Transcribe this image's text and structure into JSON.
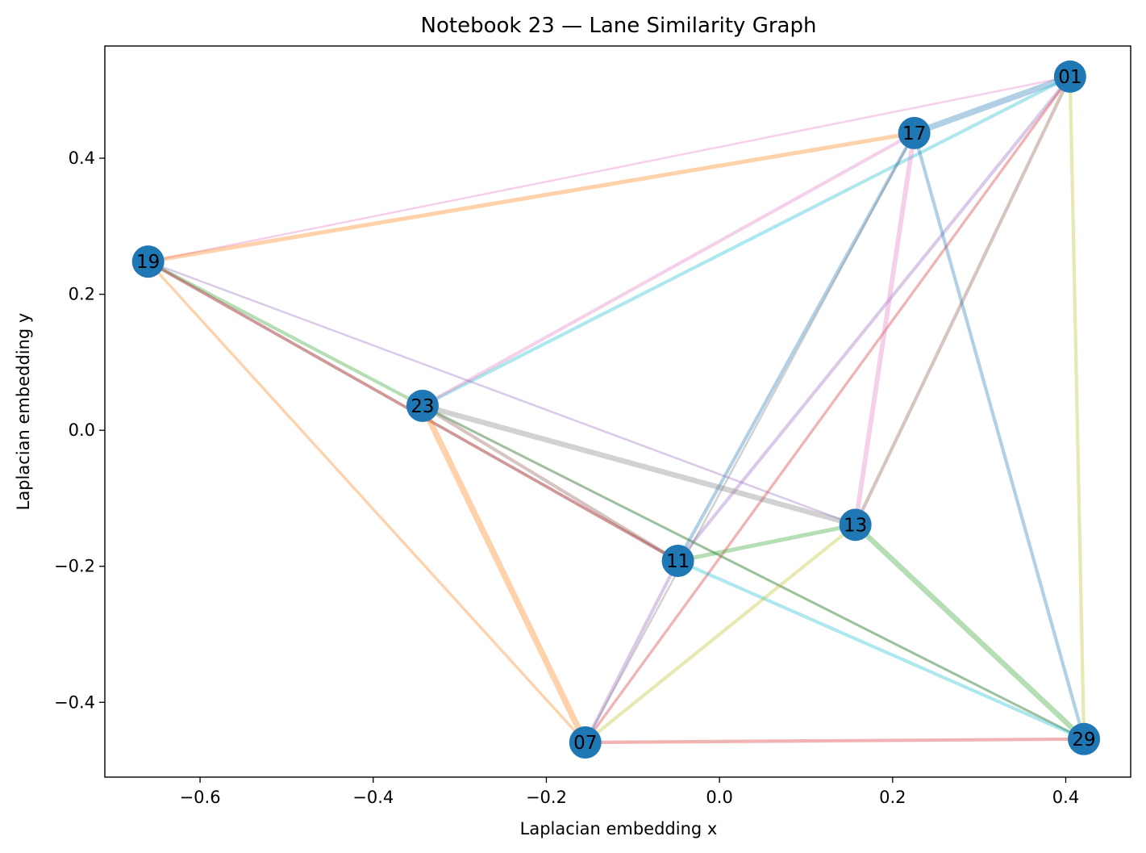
{
  "chart_data": {
    "type": "scatter",
    "subtype": "network-graph",
    "title": "Notebook 23 — Lane Similarity Graph",
    "xlabel": "Laplacian embedding x",
    "ylabel": "Laplacian embedding y",
    "xlim": [
      -0.71,
      0.475
    ],
    "ylim": [
      -0.51,
      0.565
    ],
    "xticks": [
      -0.6,
      -0.4,
      -0.2,
      0.0,
      0.2,
      0.4
    ],
    "xtick_labels": [
      "−0.6",
      "−0.4",
      "−0.2",
      "0.0",
      "0.2",
      "0.4"
    ],
    "yticks": [
      -0.4,
      -0.2,
      0.0,
      0.2,
      0.4
    ],
    "ytick_labels": [
      "−0.4",
      "−0.2",
      "0.0",
      "0.2",
      "0.4"
    ],
    "grid": false,
    "node_color": "#1f77b4",
    "nodes": [
      {
        "label": "01",
        "x": 0.405,
        "y": 0.52
      },
      {
        "label": "17",
        "x": 0.225,
        "y": 0.437
      },
      {
        "label": "19",
        "x": -0.66,
        "y": 0.248
      },
      {
        "label": "23",
        "x": -0.343,
        "y": 0.036
      },
      {
        "label": "13",
        "x": 0.157,
        "y": -0.139
      },
      {
        "label": "11",
        "x": -0.048,
        "y": -0.192
      },
      {
        "label": "07",
        "x": -0.155,
        "y": -0.459
      },
      {
        "label": "29",
        "x": 0.421,
        "y": -0.454
      }
    ],
    "edges": [
      {
        "source": "19",
        "target": "01",
        "color": "#e377c2",
        "weight": 2
      },
      {
        "source": "19",
        "target": "17",
        "color": "#ff7f0e",
        "weight": 5
      },
      {
        "source": "17",
        "target": "01",
        "color": "#1f77b4",
        "weight": 8
      },
      {
        "source": "23",
        "target": "01",
        "color": "#17becf",
        "weight": 4
      },
      {
        "source": "23",
        "target": "17",
        "color": "#e377c2",
        "weight": 4
      },
      {
        "source": "11",
        "target": "17",
        "color": "#1f77b4",
        "weight": 4
      },
      {
        "source": "11",
        "target": "01",
        "color": "#9467bd",
        "weight": 4
      },
      {
        "source": "07",
        "target": "01",
        "color": "#d62728",
        "weight": 3
      },
      {
        "source": "07",
        "target": "17",
        "color": "#7f7f7f",
        "weight": 2
      },
      {
        "source": "13",
        "target": "17",
        "color": "#e377c2",
        "weight": 6
      },
      {
        "source": "13",
        "target": "01",
        "color": "#8c564b",
        "weight": 4
      },
      {
        "source": "29",
        "target": "17",
        "color": "#1f77b4",
        "weight": 4
      },
      {
        "source": "29",
        "target": "01",
        "color": "#bcbd22",
        "weight": 4
      },
      {
        "source": "19",
        "target": "23",
        "color": "#2ca02c",
        "weight": 4
      },
      {
        "source": "19",
        "target": "13",
        "color": "#9467bd",
        "weight": 2
      },
      {
        "source": "19",
        "target": "11",
        "color": "#7f7f7f",
        "weight": 4
      },
      {
        "source": "19",
        "target": "07",
        "color": "#ff7f0e",
        "weight": 3
      },
      {
        "source": "19",
        "target": "11",
        "color": "#d62728",
        "weight": 3
      },
      {
        "source": "23",
        "target": "13",
        "color": "#7f7f7f",
        "weight": 7
      },
      {
        "source": "23",
        "target": "11",
        "color": "#8c564b",
        "weight": 4
      },
      {
        "source": "23",
        "target": "07",
        "color": "#ff7f0e",
        "weight": 8
      },
      {
        "source": "23",
        "target": "29",
        "color": "#2ca02c",
        "weight": 3
      },
      {
        "source": "23",
        "target": "29",
        "color": "#7f7f7f",
        "weight": 2
      },
      {
        "source": "11",
        "target": "13",
        "color": "#2ca02c",
        "weight": 5
      },
      {
        "source": "11",
        "target": "29",
        "color": "#17becf",
        "weight": 4
      },
      {
        "source": "11",
        "target": "07",
        "color": "#9467bd",
        "weight": 4
      },
      {
        "source": "13",
        "target": "07",
        "color": "#bcbd22",
        "weight": 4
      },
      {
        "source": "13",
        "target": "29",
        "color": "#2ca02c",
        "weight": 7
      },
      {
        "source": "07",
        "target": "29",
        "color": "#d62728",
        "weight": 4
      }
    ]
  }
}
